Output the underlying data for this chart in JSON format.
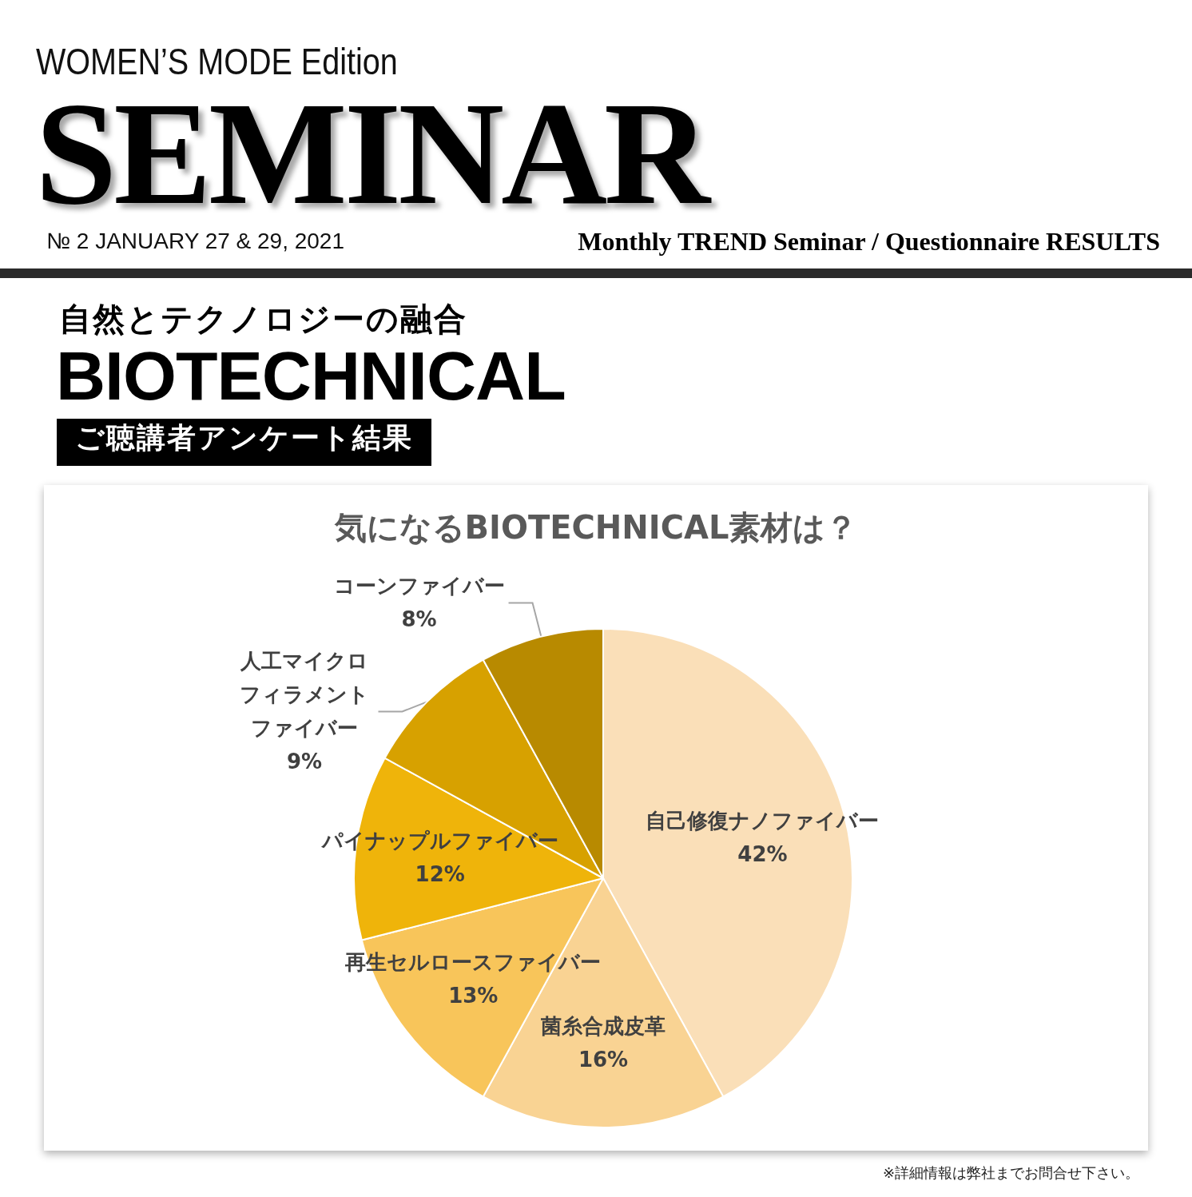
{
  "chart_data": {
    "type": "pie",
    "title": "気になるBIOTECHNICAL素材は？",
    "categories": [
      "自己修復ナノファイバー",
      "菌糸合成皮革",
      "再生セルロースファイバー",
      "パイナップルファイバー",
      "人工マイクロフィラメントファイバー",
      "コーンファイバー"
    ],
    "values": [
      42,
      16,
      13,
      12,
      9,
      8
    ],
    "value_labels": [
      "42%",
      "16%",
      "13%",
      "12%",
      "9%",
      "8%"
    ],
    "colors": [
      "#fadfb8",
      "#f9d393",
      "#f8c55a",
      "#efb40a",
      "#d7a100",
      "#b88a00"
    ],
    "annotations": [
      "WOMEN’S MODE Edition",
      "SEMINAR",
      "№ 2 JANUARY 27 & 29, 2021",
      "Monthly TREND Seminar / Questionnaire RESULTS",
      "自然とテクノロジーの融合",
      "BIOTECHNICAL",
      "ご聴講者アンケート結果",
      "※詳細情報は弊社までお問合せ下さい。"
    ]
  }
}
